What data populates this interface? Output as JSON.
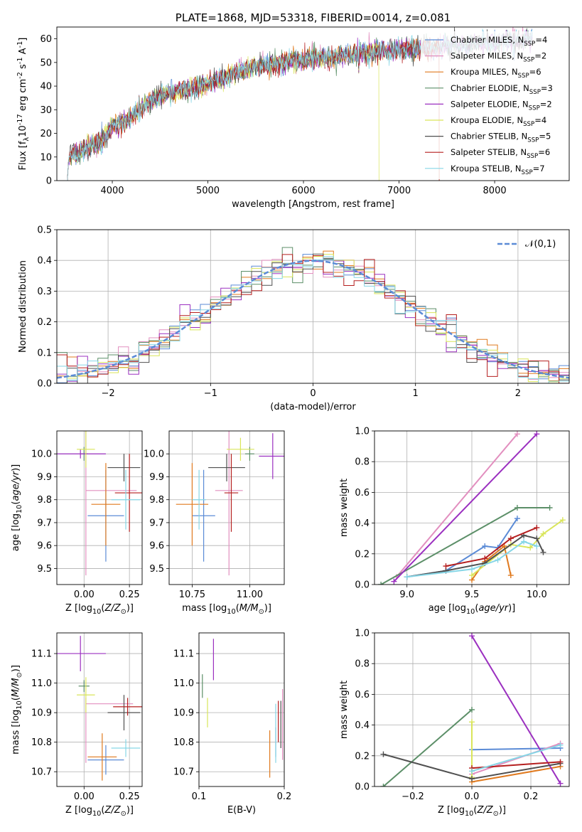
{
  "colors": {
    "chabrier_miles": "#5b8bd6",
    "salpeter_miles": "#e28fbf",
    "kroupa_miles": "#e07a1f",
    "chabrier_elodie": "#5c8f68",
    "salpeter_elodie": "#9b30c0",
    "kroupa_elodie": "#d9e55a",
    "chabrier_stelib": "#505050",
    "salpeter_stelib": "#b51f1f",
    "kroupa_stelib": "#86d6e6",
    "gaussian": "#5b8bd6",
    "grid": "#b0b0b0"
  },
  "chart_data": [
    {
      "id": "spectrum",
      "type": "line",
      "title": "PLATE=1868, MJD=53318, FIBERID=0014, z=0.081",
      "xlabel": "wavelength [Angstrom, rest frame]",
      "ylabel": "Flux [f$_\\lambda$10$^{-17}$ erg cm$^{-2}$ s$^{-1}$ A$^{-1}$]",
      "xlim": [
        3420,
        8780
      ],
      "ylim": [
        0,
        65
      ],
      "xticks": [
        4000,
        5000,
        6000,
        7000,
        8000
      ],
      "yticks": [
        0,
        10,
        20,
        30,
        40,
        50,
        60
      ],
      "grid": false,
      "legend_position": "upper-right",
      "data_x": [
        3530,
        3600,
        3700,
        3800,
        3900,
        3950,
        4000,
        4100,
        4200,
        4300,
        4400,
        4500,
        4600,
        4700,
        4800,
        4900,
        5000,
        5100,
        5200,
        5300,
        5400,
        5500,
        5600,
        5700,
        5800,
        5900,
        6000,
        6100,
        6200,
        6300,
        6400,
        6500,
        6600,
        6700,
        6800,
        6900,
        7000,
        7100,
        7200,
        7300,
        7400,
        7500,
        7600,
        7700,
        7800,
        7900,
        8000,
        8100,
        8200,
        8300,
        8400
      ],
      "data_y": [
        10,
        11,
        13,
        15,
        17,
        20,
        23,
        25,
        27,
        30,
        34,
        36,
        37,
        38,
        39,
        40,
        41,
        43,
        44,
        46,
        47,
        48,
        49,
        49,
        50,
        51,
        51,
        52,
        52,
        52,
        53,
        53,
        54,
        54,
        55,
        55,
        55,
        56,
        56,
        56,
        56,
        57,
        57,
        57,
        58,
        58,
        58,
        59,
        59,
        59,
        60
      ],
      "series": [
        {
          "name": "Chabrier MILES, N$_{SSP}$=4",
          "color_key": "chabrier_miles",
          "stop": null
        },
        {
          "name": "Salpeter MILES, N$_{SSP}$=2",
          "color_key": "salpeter_miles",
          "stop": null
        },
        {
          "name": "Kroupa MILES, N$_{SSP}$=6",
          "color_key": "kroupa_miles",
          "stop": 7420
        },
        {
          "name": "Chabrier ELODIE, N$_{SSP}$=3",
          "color_key": "chabrier_elodie",
          "stop": null
        },
        {
          "name": "Salpeter ELODIE, N$_{SSP}$=2",
          "color_key": "salpeter_elodie",
          "stop": null
        },
        {
          "name": "Kroupa ELODIE, N$_{SSP}$=4",
          "color_key": "kroupa_elodie",
          "stop": 6790
        },
        {
          "name": "Chabrier STELIB, N$_{SSP}$=5",
          "color_key": "chabrier_stelib",
          "stop": null
        },
        {
          "name": "Salpeter STELIB, N$_{SSP}$=6",
          "color_key": "salpeter_stelib",
          "stop": 7420
        },
        {
          "name": "Kroupa STELIB, N$_{SSP}$=7",
          "color_key": "kroupa_stelib",
          "stop": null
        }
      ]
    },
    {
      "id": "residuals",
      "type": "histogram",
      "title": "",
      "xlabel": "(data-model)/error",
      "ylabel": "Normed distribution",
      "xlim": [
        -2.5,
        2.5
      ],
      "ylim": [
        0,
        0.5
      ],
      "xticks": [
        -2,
        -1,
        0,
        1,
        2
      ],
      "yticks": [
        0.0,
        0.1,
        0.2,
        0.3,
        0.4,
        0.5
      ],
      "grid": true,
      "legend_position": "upper-right",
      "legend": [
        "$\\mathcal{N}(0,1)$"
      ],
      "bin_width": 0.1,
      "gaussian_label": "$\\mathcal{N}(0,1)$"
    },
    {
      "id": "age_vs_Z",
      "type": "errorbar",
      "xlabel": "Z [log$_{10}$($Z/Z_\\odot$)]",
      "ylabel": "age  [log$_{10}$($age/yr$)]",
      "xlim": [
        -0.15,
        0.32
      ],
      "ylim": [
        9.43,
        10.1
      ],
      "xticks": [
        0.0,
        0.25
      ],
      "yticks": [
        9.5,
        9.6,
        9.7,
        9.8,
        9.9,
        10.0
      ],
      "grid": true,
      "points": [
        {
          "color_key": "chabrier_miles",
          "x": 0.12,
          "xerr": 0.1,
          "y": 9.73,
          "yerr": 0.2
        },
        {
          "color_key": "salpeter_miles",
          "x": 0.01,
          "xerr": 0.0,
          "y": 9.84,
          "yerr": 0.37
        },
        {
          "color_key": "salpeter_miles",
          "x": 0.15,
          "xerr": 0.14,
          "y": 9.84,
          "yerr": 0.0
        },
        {
          "color_key": "kroupa_miles",
          "x": 0.12,
          "xerr": 0.08,
          "y": 9.78,
          "yerr": 0.18
        },
        {
          "color_key": "chabrier_elodie",
          "x": 0.0,
          "xerr": 0.02,
          "y": 10.0,
          "yerr": 0.03
        },
        {
          "color_key": "salpeter_elodie",
          "x": -0.02,
          "xerr": 0.14,
          "y": 10.0,
          "yerr": 0.02
        },
        {
          "color_key": "kroupa_elodie",
          "x": 0.01,
          "xerr": 0.05,
          "y": 10.02,
          "yerr": 0.08
        },
        {
          "color_key": "chabrier_stelib",
          "x": 0.22,
          "xerr": 0.09,
          "y": 9.94,
          "yerr": 0.06
        },
        {
          "color_key": "salpeter_stelib",
          "x": 0.25,
          "xerr": 0.08,
          "y": 9.83,
          "yerr": 0.17
        },
        {
          "color_key": "kroupa_stelib",
          "x": 0.23,
          "xerr": 0.08,
          "y": 9.8,
          "yerr": 0.13
        }
      ]
    },
    {
      "id": "age_vs_mass",
      "type": "errorbar",
      "xlabel": "mass [log$_{10}$($M/M_\\odot$)]",
      "ylabel": "",
      "xlim": [
        10.65,
        11.15
      ],
      "ylim": [
        9.43,
        10.1
      ],
      "xticks": [
        10.75,
        11.0
      ],
      "yticks": [
        9.5,
        9.6,
        9.7,
        9.8,
        9.9,
        10.0
      ],
      "grid": true,
      "points": [
        {
          "color_key": "chabrier_miles",
          "x": 10.8,
          "xerr": 0.05,
          "y": 9.73,
          "yerr": 0.2
        },
        {
          "color_key": "salpeter_miles",
          "x": 10.91,
          "xerr": 0.06,
          "y": 9.84,
          "yerr": 0.37
        },
        {
          "color_key": "kroupa_miles",
          "x": 10.75,
          "xerr": 0.07,
          "y": 9.78,
          "yerr": 0.18
        },
        {
          "color_key": "chabrier_elodie",
          "x": 11.0,
          "xerr": 0.02,
          "y": 10.0,
          "yerr": 0.03
        },
        {
          "color_key": "salpeter_elodie",
          "x": 11.1,
          "xerr": 0.06,
          "y": 9.99,
          "yerr": 0.1
        },
        {
          "color_key": "kroupa_elodie",
          "x": 10.96,
          "xerr": 0.06,
          "y": 10.02,
          "yerr": 0.05
        },
        {
          "color_key": "chabrier_stelib",
          "x": 10.9,
          "xerr": 0.08,
          "y": 9.94,
          "yerr": 0.06
        },
        {
          "color_key": "salpeter_stelib",
          "x": 10.92,
          "xerr": 0.03,
          "y": 9.83,
          "yerr": 0.17
        },
        {
          "color_key": "kroupa_stelib",
          "x": 10.78,
          "xerr": 0.03,
          "y": 9.8,
          "yerr": 0.13
        }
      ]
    },
    {
      "id": "weight_vs_age",
      "type": "line",
      "xlabel": "age  [log$_{10}$($age/yr$)]",
      "ylabel": "mass weight",
      "xlim": [
        8.75,
        10.25
      ],
      "ylim": [
        0,
        1.0
      ],
      "xticks": [
        9.0,
        9.5,
        10.0
      ],
      "yticks": [
        0.0,
        0.2,
        0.4,
        0.6,
        0.8,
        1.0
      ],
      "grid": true,
      "series": [
        {
          "color_key": "chabrier_miles",
          "x": [
            9.0,
            9.3,
            9.6,
            9.7,
            9.85
          ],
          "y": [
            0.05,
            0.09,
            0.25,
            0.24,
            0.43
          ]
        },
        {
          "color_key": "salpeter_miles",
          "x": [
            8.92,
            9.85
          ],
          "y": [
            0.05,
            0.98
          ]
        },
        {
          "color_key": "kroupa_miles",
          "x": [
            9.5,
            9.6,
            9.75,
            9.8
          ],
          "y": [
            0.03,
            0.15,
            0.25,
            0.06
          ]
        },
        {
          "color_key": "chabrier_elodie",
          "x": [
            8.8,
            9.85,
            10.1
          ],
          "y": [
            0.0,
            0.5,
            0.5
          ]
        },
        {
          "color_key": "salpeter_elodie",
          "x": [
            8.9,
            10.0
          ],
          "y": [
            0.02,
            0.98
          ]
        },
        {
          "color_key": "kroupa_elodie",
          "x": [
            9.5,
            9.8,
            9.95,
            10.05,
            10.2
          ],
          "y": [
            0.06,
            0.26,
            0.24,
            0.33,
            0.42
          ]
        },
        {
          "color_key": "chabrier_stelib",
          "x": [
            9.0,
            9.3,
            9.6,
            9.9,
            10.0,
            10.05
          ],
          "y": [
            0.05,
            0.09,
            0.14,
            0.32,
            0.3,
            0.21
          ]
        },
        {
          "color_key": "salpeter_stelib",
          "x": [
            9.3,
            9.6,
            9.8,
            10.0
          ],
          "y": [
            0.12,
            0.17,
            0.3,
            0.37
          ]
        },
        {
          "color_key": "kroupa_stelib",
          "x": [
            9.0,
            9.5,
            9.7,
            9.9,
            10.0
          ],
          "y": [
            0.05,
            0.1,
            0.16,
            0.28,
            0.25
          ]
        }
      ]
    },
    {
      "id": "mass_vs_Z",
      "type": "errorbar",
      "xlabel": "Z [log$_{10}$($Z/Z_\\odot$)]",
      "ylabel": "mass [log$_{10}$($M/M_\\odot$)]",
      "xlim": [
        -0.15,
        0.32
      ],
      "ylim": [
        10.65,
        11.17
      ],
      "xticks": [
        0.0,
        0.25
      ],
      "yticks": [
        10.7,
        10.8,
        10.9,
        11.0,
        11.1
      ],
      "grid": true,
      "points": [
        {
          "color_key": "chabrier_miles",
          "x": 0.12,
          "xerr": 0.1,
          "y": 10.74,
          "yerr": 0.05
        },
        {
          "color_key": "salpeter_miles",
          "x": 0.01,
          "xerr": 0.0,
          "y": 10.84,
          "yerr": 0.11
        },
        {
          "color_key": "salpeter_miles",
          "x": 0.14,
          "xerr": 0.13,
          "y": 10.93,
          "yerr": 0.0
        },
        {
          "color_key": "kroupa_miles",
          "x": 0.1,
          "xerr": 0.08,
          "y": 10.75,
          "yerr": 0.08
        },
        {
          "color_key": "chabrier_elodie",
          "x": 0.0,
          "xerr": 0.03,
          "y": 10.99,
          "yerr": 0.02
        },
        {
          "color_key": "salpeter_elodie",
          "x": -0.02,
          "xerr": 0.14,
          "y": 11.1,
          "yerr": 0.06
        },
        {
          "color_key": "kroupa_elodie",
          "x": 0.01,
          "xerr": 0.05,
          "y": 10.96,
          "yerr": 0.06
        },
        {
          "color_key": "chabrier_stelib",
          "x": 0.22,
          "xerr": 0.09,
          "y": 10.9,
          "yerr": 0.06
        },
        {
          "color_key": "salpeter_stelib",
          "x": 0.24,
          "xerr": 0.08,
          "y": 10.92,
          "yerr": 0.03
        },
        {
          "color_key": "kroupa_stelib",
          "x": 0.23,
          "xerr": 0.08,
          "y": 10.78,
          "yerr": 0.03
        }
      ]
    },
    {
      "id": "mass_vs_ebv",
      "type": "errorbar",
      "xlabel": "E(B-V)",
      "ylabel": "",
      "xlim": [
        0.1,
        0.2
      ],
      "ylim": [
        10.65,
        11.17
      ],
      "xticks": [
        0.1,
        0.2
      ],
      "yticks": [
        10.7,
        10.8,
        10.9,
        11.0,
        11.1
      ],
      "grid": true,
      "points": [
        {
          "color_key": "chabrier_miles",
          "x": 0.19,
          "xerr": 0.0,
          "y": 10.8,
          "yerr": 0.05
        },
        {
          "color_key": "salpeter_miles",
          "x": 0.198,
          "xerr": 0.0,
          "y": 10.86,
          "yerr": 0.12
        },
        {
          "color_key": "kroupa_miles",
          "x": 0.183,
          "xerr": 0.0,
          "y": 10.76,
          "yerr": 0.08
        },
        {
          "color_key": "chabrier_elodie",
          "x": 0.104,
          "xerr": 0.0,
          "y": 10.99,
          "yerr": 0.04
        },
        {
          "color_key": "salpeter_elodie",
          "x": 0.117,
          "xerr": 0.0,
          "y": 11.08,
          "yerr": 0.07
        },
        {
          "color_key": "kroupa_elodie",
          "x": 0.11,
          "xerr": 0.0,
          "y": 10.9,
          "yerr": 0.05
        },
        {
          "color_key": "chabrier_stelib",
          "x": 0.196,
          "xerr": 0.0,
          "y": 10.86,
          "yerr": 0.08
        },
        {
          "color_key": "salpeter_stelib",
          "x": 0.193,
          "xerr": 0.0,
          "y": 10.87,
          "yerr": 0.07
        },
        {
          "color_key": "kroupa_stelib",
          "x": 0.19,
          "xerr": 0.0,
          "y": 10.83,
          "yerr": 0.1
        }
      ]
    },
    {
      "id": "weight_vs_Z",
      "type": "line",
      "xlabel": "Z [log$_{10}$($Z/Z_\\odot$)]",
      "ylabel": "mass weight",
      "xlim": [
        -0.33,
        0.33
      ],
      "ylim": [
        0,
        1.0
      ],
      "xticks": [
        -0.2,
        0.0,
        0.2
      ],
      "yticks": [
        0.0,
        0.2,
        0.4,
        0.6,
        0.8,
        1.0
      ],
      "grid": true,
      "series": [
        {
          "color_key": "chabrier_miles",
          "x": [
            0.0,
            0.3
          ],
          "y": [
            0.24,
            0.25
          ]
        },
        {
          "color_key": "salpeter_miles",
          "x": [
            0.0,
            0.3
          ],
          "y": [
            0.08,
            0.28
          ]
        },
        {
          "color_key": "kroupa_miles",
          "x": [
            0.0,
            0.3
          ],
          "y": [
            0.03,
            0.13
          ]
        },
        {
          "color_key": "chabrier_elodie",
          "x": [
            -0.3,
            0.0
          ],
          "y": [
            0.0,
            0.5
          ]
        },
        {
          "color_key": "salpeter_elodie",
          "x": [
            0.0,
            0.3
          ],
          "y": [
            0.98,
            0.02
          ]
        },
        {
          "color_key": "kroupa_elodie",
          "x": [
            0.0,
            0.0
          ],
          "y": [
            0.06,
            0.42
          ]
        },
        {
          "color_key": "chabrier_stelib",
          "x": [
            -0.3,
            0.0,
            0.3
          ],
          "y": [
            0.21,
            0.05,
            0.15
          ]
        },
        {
          "color_key": "salpeter_stelib",
          "x": [
            0.0,
            0.3
          ],
          "y": [
            0.12,
            0.16
          ]
        },
        {
          "color_key": "kroupa_stelib",
          "x": [
            0.0,
            0.3
          ],
          "y": [
            0.1,
            0.27
          ]
        }
      ]
    }
  ]
}
